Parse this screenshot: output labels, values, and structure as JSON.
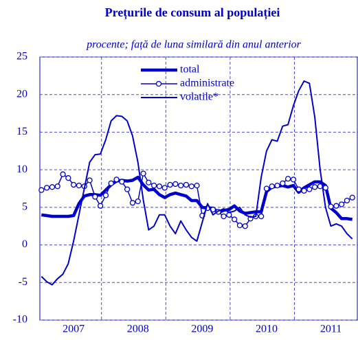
{
  "chart_data": {
    "type": "line",
    "title": "Prețurile de consum al populației",
    "subtitle": "procente; față de luna similară din anul anterior",
    "categories": [
      null,
      null,
      null,
      null,
      null,
      null,
      "2007",
      null,
      null,
      null,
      null,
      null,
      null,
      null,
      null,
      null,
      null,
      null,
      "2008",
      null,
      null,
      null,
      null,
      null,
      null,
      null,
      null,
      null,
      null,
      null,
      "2009",
      null,
      null,
      null,
      null,
      null,
      null,
      null,
      null,
      null,
      null,
      null,
      "2010",
      null,
      null,
      null,
      null,
      null,
      null,
      null,
      null,
      null,
      null,
      null,
      "2011",
      null,
      null,
      null,
      null
    ],
    "ylim": [
      -10,
      25
    ],
    "yticks": [
      -10,
      -5,
      0,
      5,
      10,
      15,
      20,
      25
    ],
    "grid": true,
    "legend": "top",
    "series": [
      {
        "name": "total",
        "color": "#0000cc",
        "style": "thick",
        "values": [
          4,
          3.9,
          3.8,
          3.8,
          3.8,
          3.8,
          3.9,
          5.5,
          6.5,
          6.7,
          6.7,
          6.6,
          7.3,
          8,
          8.5,
          8.6,
          8.5,
          8.6,
          9,
          8,
          7.3,
          7.4,
          6.7,
          6.3,
          6.7,
          6.9,
          6.7,
          6.5,
          5.9,
          5.9,
          5,
          4.9,
          4.9,
          4.3,
          4.6,
          4.7,
          5.2,
          4.5,
          4.2,
          4.3,
          4.4,
          4.4,
          7.1,
          7.7,
          7.8,
          7.9,
          7.7,
          7.9,
          7,
          7.6,
          8,
          8.4,
          8.4,
          7.9,
          4.9,
          4.3,
          3.5,
          3.5,
          3.4
        ]
      },
      {
        "name": "administrate",
        "color": "#0000cc",
        "style": "markers",
        "values": [
          7.3,
          7.6,
          7.7,
          7.8,
          9.4,
          8.9,
          8,
          7.9,
          7.8,
          8.6,
          6.4,
          5.2,
          6.6,
          8.2,
          8.7,
          8.4,
          7.4,
          5.6,
          5.8,
          9.5,
          8.3,
          7.9,
          7.8,
          7.6,
          8,
          8.1,
          7.9,
          8,
          7.8,
          7.9,
          3.9,
          4.9,
          4.7,
          4.4,
          3.8,
          4,
          3.4,
          2.6,
          2.5,
          3.5,
          3.8,
          3.8,
          7.5,
          7.8,
          7.9,
          8.2,
          8.8,
          8.7,
          7.4,
          7.2,
          7.4,
          7.7,
          7.8,
          7.6,
          5.1,
          5.2,
          5.4,
          5.9,
          6.3
        ]
      },
      {
        "name": "volatile*",
        "color": "#0000cc",
        "style": "thin",
        "values": [
          -4.2,
          -4.9,
          -5.3,
          -4.5,
          -3.9,
          -2.5,
          0.5,
          4,
          7.5,
          11,
          12,
          12.1,
          14,
          16.5,
          17.2,
          17.1,
          16.5,
          14.5,
          11,
          6,
          2,
          2.5,
          4,
          4,
          2.5,
          1.5,
          3.2,
          2,
          1,
          0.5,
          3,
          5.5,
          4,
          4.5,
          4.8,
          4.3,
          4.5,
          5,
          4,
          3.7,
          3.8,
          9,
          12.5,
          14,
          13.8,
          15.8,
          16,
          18.5,
          20.5,
          21.8,
          21.5,
          17,
          10,
          5,
          2.5,
          2.8,
          2.5,
          1.5,
          0.8
        ]
      }
    ]
  }
}
